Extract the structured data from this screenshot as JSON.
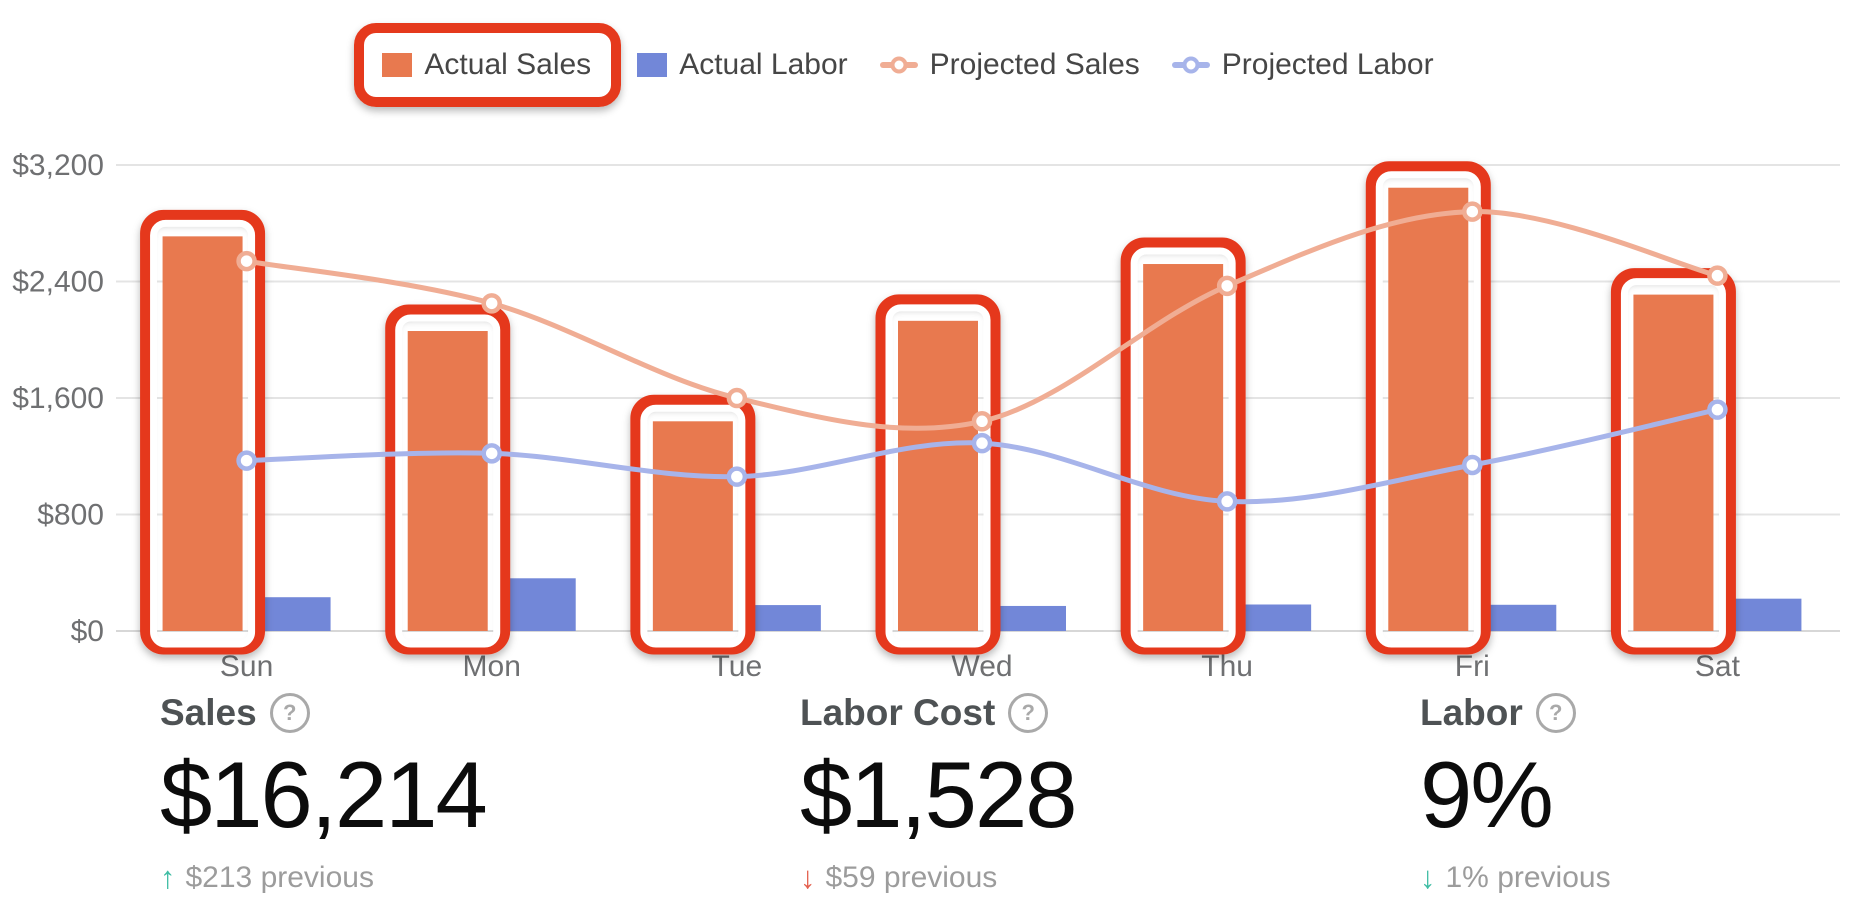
{
  "legend": {
    "items": [
      {
        "label": "Actual Sales",
        "marker": "square",
        "color": "#E8794F",
        "highlighted": true
      },
      {
        "label": "Actual Labor",
        "marker": "square",
        "color": "#7287D8",
        "highlighted": false
      },
      {
        "label": "Projected Sales",
        "marker": "line-dot",
        "color": "#F0AD94",
        "highlighted": false
      },
      {
        "label": "Projected Labor",
        "marker": "line-dot",
        "color": "#A7B4EA",
        "highlighted": false
      }
    ]
  },
  "chart_data": {
    "type": "bar",
    "subtype": "combo bar+line, grouped by day",
    "categories": [
      "Sun",
      "Mon",
      "Tue",
      "Wed",
      "Thu",
      "Fri",
      "Sat"
    ],
    "series": [
      {
        "name": "Actual Sales",
        "type": "bar",
        "color": "#E8794F",
        "values": [
          2710,
          2060,
          1440,
          2130,
          2520,
          3044,
          2310
        ]
      },
      {
        "name": "Actual Labor",
        "type": "bar",
        "color": "#7287D8",
        "values": [
          232,
          362,
          178,
          172,
          182,
          180,
          222
        ]
      },
      {
        "name": "Projected Sales",
        "type": "line",
        "color": "#F0AD94",
        "values": [
          2540,
          2250,
          1600,
          1440,
          2370,
          2880,
          2440
        ]
      },
      {
        "name": "Projected Labor",
        "type": "line",
        "color": "#A7B4EA",
        "values": [
          1170,
          1220,
          1060,
          1290,
          890,
          1140,
          1520
        ]
      }
    ],
    "title": "",
    "xlabel": "",
    "ylabel": "",
    "ylim": [
      0,
      3200
    ],
    "ytick_values": [
      0,
      800,
      1600,
      2400,
      3200
    ],
    "ytick_labels": [
      "$0",
      "$800",
      "$1,600",
      "$2,400",
      "$3,200"
    ],
    "grid": true,
    "gridline_color": "#E4E4E4",
    "baseline_color": "#D7D7D7",
    "axis_label_color": "#6F7072",
    "legend_position": "top-center",
    "annotations": {
      "highlight_color": "#E5391C",
      "highlighted_elements": [
        "legend item Actual Sales",
        "Actual Sales bar Sun",
        "Actual Sales bar Mon",
        "Actual Sales bar Tue",
        "Actual Sales bar Wed",
        "Actual Sales bar Thu",
        "Actual Sales bar Fri",
        "Actual Sales bar Sat"
      ]
    }
  },
  "stats": [
    {
      "title": "Sales",
      "help_icon": "?",
      "value": "$16,214",
      "arrow": "↑",
      "arrow_color": "#3FBDA4",
      "delta_text": "$213 previous"
    },
    {
      "title": "Labor Cost",
      "help_icon": "?",
      "value": "$1,528",
      "arrow": "↓",
      "arrow_color": "#E4604E",
      "delta_text": "$59 previous"
    },
    {
      "title": "Labor",
      "help_icon": "?",
      "value": "9%",
      "arrow": "↓",
      "arrow_color": "#3FBDA4",
      "delta_text": "1% previous"
    }
  ]
}
